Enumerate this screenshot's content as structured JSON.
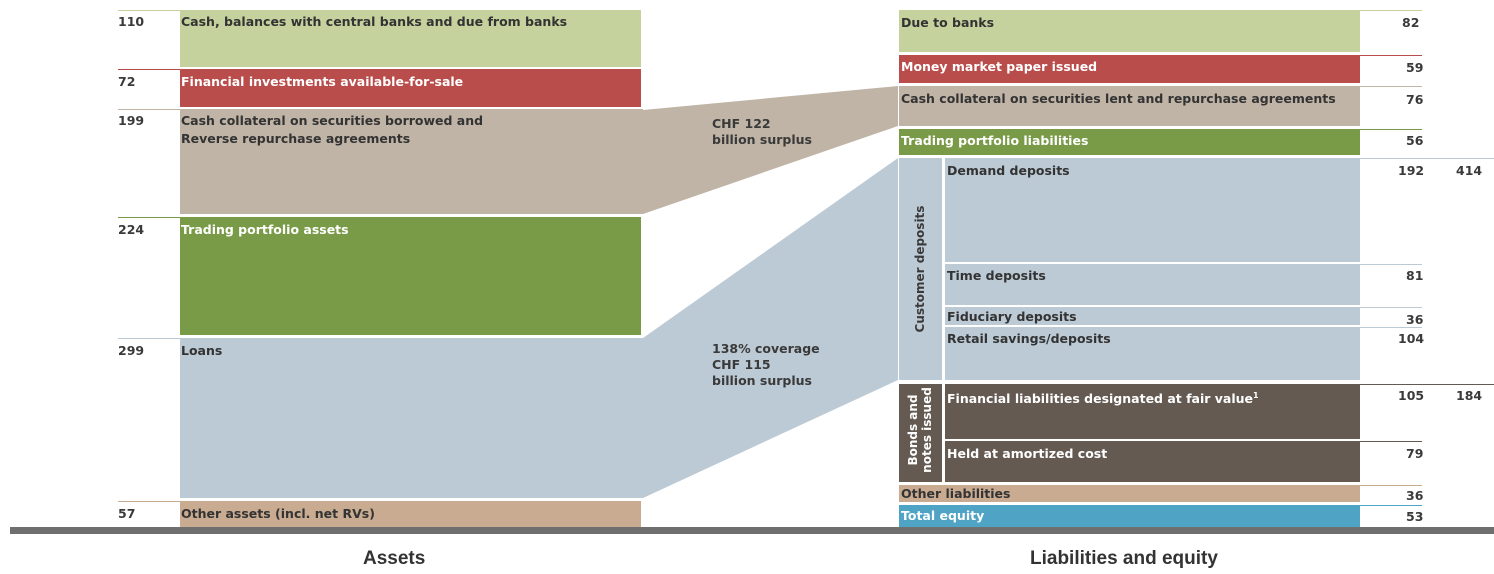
{
  "assets": {
    "title": "Assets",
    "items": [
      {
        "value": "110",
        "label": "Cash, balances with central banks and due from banks",
        "color": "#c5d29d"
      },
      {
        "value": "72",
        "label": "Financial investments available-for-sale",
        "color": "#b94d4b"
      },
      {
        "value": "199",
        "label_line1": "Cash collateral on securities borrowed and",
        "label_line2": "Reverse repurchase agreements",
        "color": "#c0b4a6"
      },
      {
        "value": "224",
        "label": "Trading portfolio assets",
        "color": "#799a46"
      },
      {
        "value": "299",
        "label": "Loans",
        "color": "#bccad5"
      },
      {
        "value": "57",
        "label": "Other assets (incl. net RVs)",
        "color": "#c8ab91"
      }
    ]
  },
  "middle": {
    "surplus1_line1": "CHF 122",
    "surplus1_line2": "billion surplus",
    "surplus2_line1": "138% coverage",
    "surplus2_line2": "CHF 115",
    "surplus2_line3": "billion surplus"
  },
  "liabilities": {
    "title": "Liabilities and equity",
    "items": [
      {
        "value": "82",
        "label": "Due to banks",
        "color": "#c5d29d"
      },
      {
        "value": "59",
        "label": "Money market paper issued",
        "color": "#b94d4b"
      },
      {
        "value": "76",
        "label": "Cash collateral on securities lent and repurchase agreements",
        "color": "#c0b4a6"
      },
      {
        "value": "56",
        "label": "Trading portfolio liabilities",
        "color": "#799a46"
      },
      {
        "value": "36",
        "label": "Other liabilities",
        "color": "#c8ab91"
      },
      {
        "value": "53",
        "label": "Total equity",
        "color": "#4fa3c4"
      }
    ],
    "customer_deposits": {
      "group_label": "Customer deposits",
      "total": "414",
      "color": "#bccad5",
      "items": [
        {
          "value": "192",
          "label": "Demand deposits"
        },
        {
          "value": "81",
          "label": "Time deposits"
        },
        {
          "value": "36",
          "label": "Fiduciary deposits"
        },
        {
          "value": "104",
          "label": "Retail savings/deposits"
        }
      ]
    },
    "bonds": {
      "group_label_line1": "Bonds and",
      "group_label_line2": "notes issued",
      "total": "184",
      "color": "#645a52",
      "items": [
        {
          "value": "105",
          "label": "Financial liabilities designated at fair value",
          "footnote": "1"
        },
        {
          "value": "79",
          "label": "Held at amortized cost"
        }
      ]
    }
  }
}
